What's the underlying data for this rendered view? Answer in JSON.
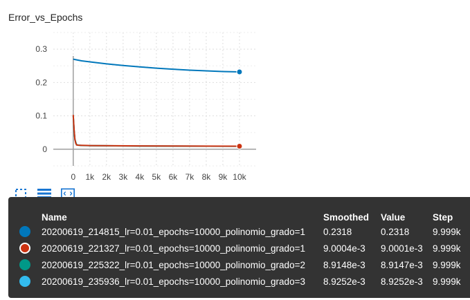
{
  "chart_title": "Error_vs_Epochs",
  "chart_data": {
    "type": "line",
    "title": "Error_vs_Epochs",
    "xlabel": "",
    "ylabel": "",
    "xlim": [
      -1200,
      11000
    ],
    "ylim": [
      -0.05,
      0.35
    ],
    "x_ticks": [
      0,
      1000,
      2000,
      3000,
      4000,
      5000,
      6000,
      7000,
      8000,
      9000,
      10000
    ],
    "x_tick_labels": [
      "0",
      "1k",
      "2k",
      "3k",
      "4k",
      "5k",
      "6k",
      "7k",
      "8k",
      "9k",
      "10k"
    ],
    "y_ticks": [
      0,
      0.1,
      0.2,
      0.3
    ],
    "y_tick_labels": [
      "0",
      "0.1",
      "0.2",
      "0.3"
    ],
    "grid": true,
    "series": [
      {
        "name": "20200619_214815_lr=0.01_epochs=10000_polinomio_grado=1",
        "color": "#0077bb",
        "x": [
          0,
          500,
          1000,
          2000,
          3000,
          4000,
          5000,
          6000,
          7000,
          8000,
          9000,
          9999
        ],
        "y": [
          0.27,
          0.265,
          0.262,
          0.256,
          0.251,
          0.247,
          0.243,
          0.24,
          0.237,
          0.235,
          0.233,
          0.2318
        ]
      },
      {
        "name": "20200619_221327_lr=0.01_epochs=10000_polinomio_grado=1",
        "color": "#cc3311",
        "x": [
          0,
          50,
          100,
          150,
          200,
          300,
          500,
          1000,
          2000,
          4000,
          6000,
          8000,
          9999
        ],
        "y": [
          0.103,
          0.06,
          0.03,
          0.018,
          0.013,
          0.012,
          0.0115,
          0.011,
          0.0105,
          0.0098,
          0.0094,
          0.0092,
          0.0090004
        ]
      },
      {
        "name": "20200619_225322_lr=0.01_epochs=10000_polinomio_grado=2",
        "color": "#009988",
        "x": [
          0,
          50,
          100,
          200,
          500,
          1000,
          4000,
          9999
        ],
        "y": [
          0.1,
          0.058,
          0.029,
          0.013,
          0.0112,
          0.0108,
          0.0096,
          0.0089148
        ]
      },
      {
        "name": "20200619_235936_lr=0.01_epochs=10000_polinomio_grado=3",
        "color": "#33bbee",
        "x": [
          0,
          50,
          100,
          200,
          500,
          1000,
          4000,
          9999
        ],
        "y": [
          0.1,
          0.058,
          0.029,
          0.013,
          0.0112,
          0.0108,
          0.0096,
          0.0089252
        ]
      }
    ]
  },
  "tooltip": {
    "headers": {
      "name": "Name",
      "smoothed": "Smoothed",
      "value": "Value",
      "step": "Step"
    },
    "rows": [
      {
        "name": "20200619_214815_lr=0.01_epochs=10000_polinomio_grado=1",
        "smoothed": "0.2318",
        "value": "0.2318",
        "step": "9.999k",
        "color": "#0077bb",
        "selected": false
      },
      {
        "name": "20200619_221327_lr=0.01_epochs=10000_polinomio_grado=1",
        "smoothed": "9.0004e-3",
        "value": "9.0001e-3",
        "step": "9.999k",
        "color": "#cc3311",
        "selected": true
      },
      {
        "name": "20200619_225322_lr=0.01_epochs=10000_polinomio_grado=2",
        "smoothed": "8.9148e-3",
        "value": "8.9147e-3",
        "step": "9.999k",
        "color": "#009988",
        "selected": false
      },
      {
        "name": "20200619_235936_lr=0.01_epochs=10000_polinomio_grado=3",
        "smoothed": "8.9252e-3",
        "value": "8.9252e-3",
        "step": "9.999k",
        "color": "#33bbee",
        "selected": false
      }
    ]
  },
  "toolbar": {
    "icons": [
      "fullscreen-icon",
      "toggle-log-scale-icon",
      "fit-domain-icon"
    ],
    "accent": "#1976d2"
  }
}
